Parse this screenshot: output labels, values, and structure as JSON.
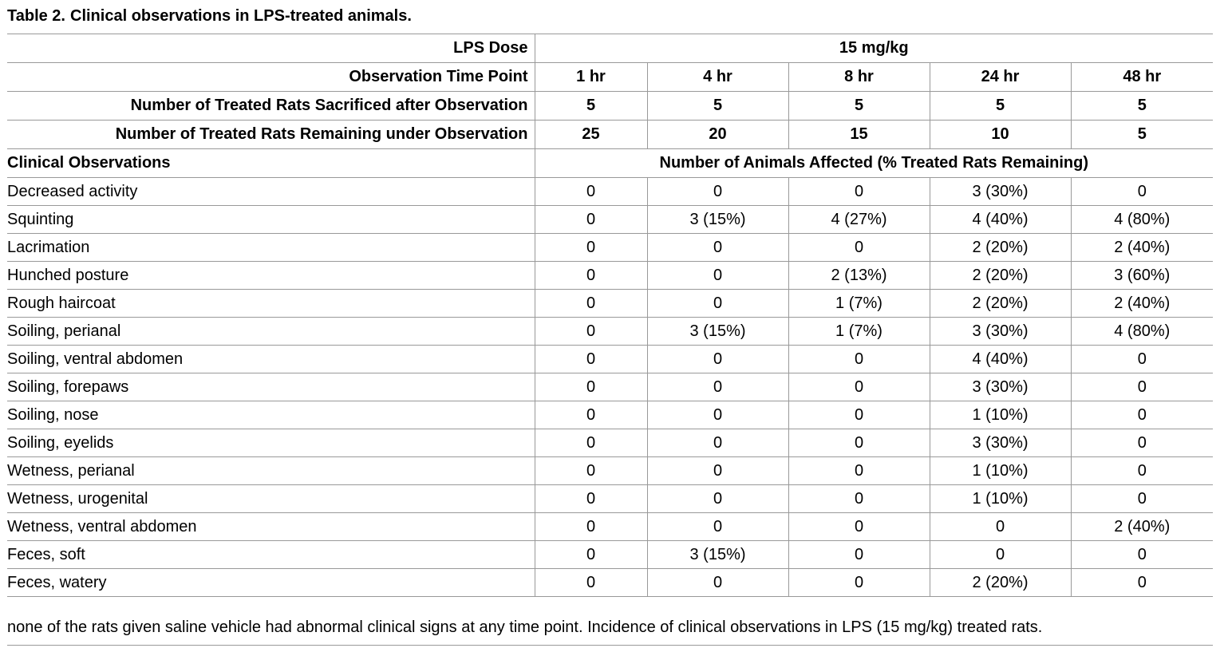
{
  "caption": {
    "label": "Table 2.",
    "text": "Clinical observations in LPS-treated animals."
  },
  "header_rows": {
    "dose": {
      "label": "LPS Dose",
      "value": "15 mg/kg"
    },
    "time": {
      "label": "Observation Time Point",
      "values": [
        "1 hr",
        "4 hr",
        "8 hr",
        "24 hr",
        "48 hr"
      ]
    },
    "sacrificed": {
      "label": "Number of Treated Rats Sacrificed after Observation",
      "values": [
        "5",
        "5",
        "5",
        "5",
        "5"
      ]
    },
    "remaining": {
      "label": "Number of Treated Rats Remaining under Observation",
      "values": [
        "25",
        "20",
        "15",
        "10",
        "5"
      ]
    }
  },
  "section": {
    "label": "Clinical Observations",
    "value": "Number of Animals Affected (% Treated Rats Remaining)"
  },
  "observations": [
    {
      "name": "Decreased activity",
      "values": [
        "0",
        "0",
        "0",
        "3 (30%)",
        "0"
      ]
    },
    {
      "name": "Squinting",
      "values": [
        "0",
        "3 (15%)",
        "4 (27%)",
        "4 (40%)",
        "4 (80%)"
      ]
    },
    {
      "name": "Lacrimation",
      "values": [
        "0",
        "0",
        "0",
        "2 (20%)",
        "2 (40%)"
      ]
    },
    {
      "name": "Hunched posture",
      "values": [
        "0",
        "0",
        "2 (13%)",
        "2 (20%)",
        "3 (60%)"
      ]
    },
    {
      "name": "Rough haircoat",
      "values": [
        "0",
        "0",
        "1 (7%)",
        "2 (20%)",
        "2 (40%)"
      ]
    },
    {
      "name": "Soiling, perianal",
      "values": [
        "0",
        "3 (15%)",
        "1 (7%)",
        "3 (30%)",
        "4 (80%)"
      ]
    },
    {
      "name": "Soiling, ventral abdomen",
      "values": [
        "0",
        "0",
        "0",
        "4 (40%)",
        "0"
      ]
    },
    {
      "name": "Soiling, forepaws",
      "values": [
        "0",
        "0",
        "0",
        "3 (30%)",
        "0"
      ]
    },
    {
      "name": "Soiling, nose",
      "values": [
        "0",
        "0",
        "0",
        "1 (10%)",
        "0"
      ]
    },
    {
      "name": "Soiling, eyelids",
      "values": [
        "0",
        "0",
        "0",
        "3 (30%)",
        "0"
      ]
    },
    {
      "name": "Wetness, perianal",
      "values": [
        "0",
        "0",
        "0",
        "1 (10%)",
        "0"
      ]
    },
    {
      "name": "Wetness, urogenital",
      "values": [
        "0",
        "0",
        "0",
        "1 (10%)",
        "0"
      ]
    },
    {
      "name": "Wetness, ventral abdomen",
      "values": [
        "0",
        "0",
        "0",
        "0",
        "2 (40%)"
      ]
    },
    {
      "name": "Feces, soft",
      "values": [
        "0",
        "3 (15%)",
        "0",
        "0",
        "0"
      ]
    },
    {
      "name": "Feces, watery",
      "values": [
        "0",
        "0",
        "0",
        "2 (20%)",
        "0"
      ]
    }
  ],
  "footnote": "none of the rats given saline vehicle had abnormal clinical signs at any time point. Incidence of clinical observations in LPS (15 mg/kg) treated rats."
}
